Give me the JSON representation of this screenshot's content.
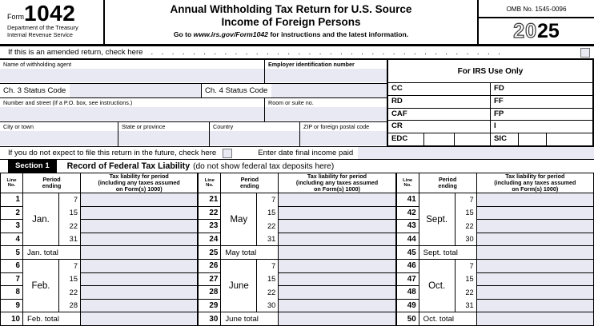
{
  "colors": {
    "input_bg": "#e9e9f4",
    "section_header_bg": "#000000"
  },
  "header": {
    "form_label": "Form",
    "form_number": "1042",
    "dept_line1": "Department of the Treasury",
    "dept_line2": "Internal Revenue Service",
    "title_line1": "Annual Withholding Tax Return for U.S. Source",
    "title_line2": "Income of Foreign Persons",
    "instruction_prefix": "Go to ",
    "instruction_url": "www.irs.gov/Form1042",
    "instruction_suffix": " for instructions and the latest information.",
    "omb": "OMB No. 1545-0096",
    "year_outline": "20",
    "year_bold": "25"
  },
  "amended_row": {
    "text": "If this is an amended return, check here",
    "dots": ".................................."
  },
  "fields": {
    "name_agent": "Name of withholding agent",
    "ein": "Employer identification number",
    "ch3": "Ch. 3 Status Code",
    "ch4": "Ch. 4 Status Code",
    "street": "Number and street (If a P.O. box, see instructions.)",
    "room": "Room or suite no.",
    "city": "City or town",
    "state": "State or province",
    "country": "Country",
    "zip": "ZIP or foreign postal code"
  },
  "irs_box": {
    "title": "For IRS Use Only",
    "rows": [
      {
        "left": "CC",
        "right": "FD"
      },
      {
        "left": "RD",
        "right": "FF"
      },
      {
        "left": "CAF",
        "right": "FP"
      },
      {
        "left": "CR",
        "right": "I"
      },
      {
        "left": "EDC",
        "right": "SIC"
      }
    ]
  },
  "future_row": {
    "text": "If you do not expect to file this return in the future, check here",
    "date_label": "Enter date final income paid"
  },
  "section1": {
    "label": "Section 1",
    "title": "Record of Federal Tax Liability",
    "note": "(do not show federal tax deposits here)"
  },
  "liability_table": {
    "headers": {
      "line": "Line\nNo.",
      "period": "Period\nending",
      "liability": "Tax liability for period\n(including any taxes assumed\non Form(s) 1000)"
    },
    "columns": [
      {
        "blocks": [
          {
            "month": "Jan.",
            "line_numbers": [
              1,
              2,
              3,
              4
            ],
            "days": [
              7,
              15,
              22,
              31
            ],
            "total_line": 5,
            "total_label": "Jan. total"
          },
          {
            "month": "Feb.",
            "line_numbers": [
              6,
              7,
              8,
              9
            ],
            "days": [
              7,
              15,
              22,
              28
            ],
            "total_line": 10,
            "total_label": "Feb. total"
          }
        ]
      },
      {
        "blocks": [
          {
            "month": "May",
            "line_numbers": [
              21,
              22,
              23,
              24
            ],
            "days": [
              7,
              15,
              22,
              31
            ],
            "total_line": 25,
            "total_label": "May total"
          },
          {
            "month": "June",
            "line_numbers": [
              26,
              27,
              28,
              29
            ],
            "days": [
              7,
              15,
              22,
              30
            ],
            "total_line": 30,
            "total_label": "June total"
          }
        ]
      },
      {
        "blocks": [
          {
            "month": "Sept.",
            "line_numbers": [
              41,
              42,
              43,
              44
            ],
            "days": [
              7,
              15,
              22,
              30
            ],
            "total_line": 45,
            "total_label": "Sept. total"
          },
          {
            "month": "Oct.",
            "line_numbers": [
              46,
              47,
              48,
              49
            ],
            "days": [
              7,
              15,
              22,
              31
            ],
            "total_line": 50,
            "total_label": "Oct. total"
          }
        ]
      }
    ]
  }
}
